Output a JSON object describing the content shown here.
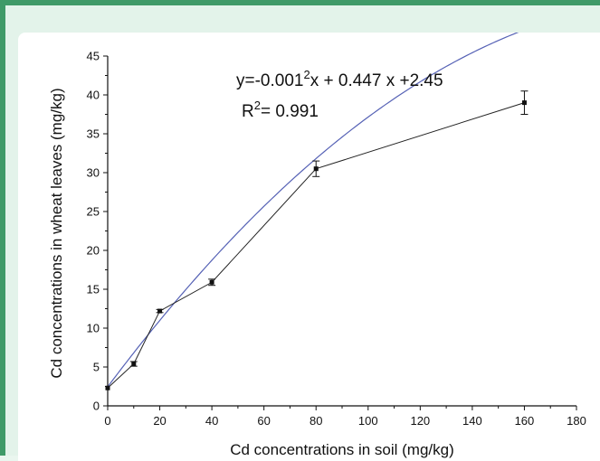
{
  "chart_data": {
    "type": "scatter",
    "title": "",
    "xlabel": "Cd  concentrations in soil (mg/kg)",
    "ylabel": "Cd concentrations in wheat leaves (mg/kg)",
    "xlim": [
      0,
      180
    ],
    "ylim": [
      0,
      45
    ],
    "xticks": [
      "0",
      "20",
      "40",
      "60",
      "80",
      "100",
      "120",
      "140",
      "160",
      "180"
    ],
    "yticks": [
      "0",
      "5",
      "10",
      "15",
      "20",
      "25",
      "30",
      "35",
      "40",
      "45"
    ],
    "grid": false,
    "series": [
      {
        "type": "line-with-markers",
        "color": "#222222",
        "points": [
          {
            "x": 0,
            "y": 2.3,
            "err": 0.0
          },
          {
            "x": 10,
            "y": 5.4,
            "err": 0.3
          },
          {
            "x": 20,
            "y": 12.2,
            "err": 0.2
          },
          {
            "x": 40,
            "y": 15.9,
            "err": 0.4
          },
          {
            "x": 80,
            "y": 30.5,
            "err": 1.0
          },
          {
            "x": 160,
            "y": 39.0,
            "err": 1.5
          }
        ]
      },
      {
        "type": "fit-curve",
        "color": "#5561b5",
        "formula": {
          "a": -0.001,
          "b": 0.447,
          "c": 2.45
        },
        "x_range": [
          0,
          175
        ]
      }
    ],
    "annotation": {
      "equation_text": "y=-0.001",
      "equation_sup": "2",
      "equation_rest": "x + 0.447 x +2.45",
      "r2_label": "R",
      "r2_sup": "2",
      "r2_value": "= 0.991"
    }
  }
}
